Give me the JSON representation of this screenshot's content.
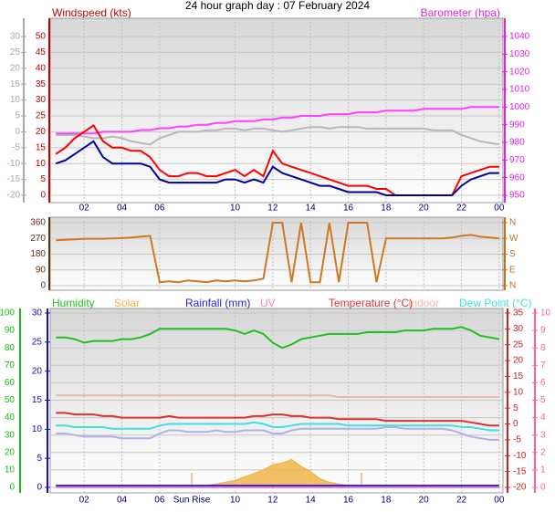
{
  "chart_data": [
    {
      "type": "line",
      "title": "24 hour graph day : 07 February 2024",
      "ylabel": "Windspeed (kts)",
      "y2label": "Barometer (hpa)",
      "x": [
        0.5,
        1,
        1.5,
        2,
        2.5,
        3,
        3.5,
        4,
        4.5,
        5,
        5.5,
        6,
        6.5,
        7,
        7.5,
        8,
        8.5,
        9,
        9.5,
        10,
        10.5,
        11,
        11.5,
        12,
        12.5,
        13,
        13.5,
        14,
        14.5,
        15,
        15.5,
        16,
        16.5,
        17,
        17.5,
        18,
        18.5,
        19,
        19.5,
        20,
        20.5,
        21,
        21.5,
        22,
        22.5,
        23,
        23.5,
        24
      ],
      "xlim": [
        0.2,
        24.2
      ],
      "xticks": [
        {
          "value": 2,
          "label": "02"
        },
        {
          "value": 4,
          "label": "04"
        },
        {
          "value": 6,
          "label": "06"
        },
        10,
        12,
        14,
        16,
        18,
        20,
        22,
        {
          "value": 24,
          "label": "00"
        }
      ],
      "ylim": [
        0,
        50
      ],
      "yticks": [
        0,
        5,
        10,
        15,
        20,
        25,
        30,
        35,
        40,
        45,
        50
      ],
      "y2lim": [
        950,
        1040
      ],
      "y2ticks": [
        950,
        960,
        970,
        980,
        990,
        1000,
        1010,
        1020,
        1030,
        1040
      ],
      "y3lim": [
        -20,
        30
      ],
      "y3ticks": [
        -20,
        -15,
        -10,
        -5,
        0,
        5,
        10,
        15,
        20,
        25,
        30
      ],
      "axis_colors": {
        "y": "#c00000",
        "y2": "#e020e0",
        "y3": "#a8a8a8"
      },
      "grid": true,
      "series": [
        {
          "color": "#b8b8b8",
          "axis": "y3",
          "values": [
            -1,
            -1,
            -1,
            -1.5,
            -2,
            -2,
            -1.5,
            -2,
            -3,
            -3.5,
            -4,
            -2,
            -1,
            0,
            0,
            0,
            0.5,
            0.5,
            1,
            1,
            0.5,
            1,
            1,
            0.5,
            0,
            0.5,
            1,
            1.5,
            1.5,
            1,
            1.5,
            1.5,
            1.5,
            1,
            1,
            1,
            1,
            1,
            1,
            1,
            0.5,
            0.5,
            0.5,
            -1,
            -2,
            -3,
            -3.5,
            -4
          ]
        },
        {
          "color": "#ff40ff",
          "axis": "y2",
          "values": [
            985,
            985,
            985,
            985,
            985,
            986,
            986,
            986,
            986,
            987,
            987,
            988,
            988,
            989,
            989,
            990,
            990,
            991,
            991,
            992,
            992,
            992,
            993,
            993,
            994,
            994,
            995,
            995,
            995,
            996,
            996,
            996,
            997,
            997,
            997,
            998,
            998,
            998,
            998,
            999,
            999,
            999,
            999,
            999,
            1000,
            1000,
            1000,
            1000
          ]
        },
        {
          "color": "#ff0000",
          "values": [
            13,
            15,
            18,
            20,
            22,
            17,
            15,
            15,
            14,
            14,
            12,
            8,
            6,
            6,
            7,
            7,
            6,
            6,
            7,
            8,
            6,
            8,
            6,
            14,
            10,
            9,
            8,
            7,
            6,
            5,
            4,
            3,
            3,
            3,
            2,
            2,
            0,
            0,
            0,
            0,
            0,
            0,
            0,
            6,
            7,
            8,
            9,
            9
          ]
        },
        {
          "color": "#0000a0",
          "values": [
            10,
            11,
            13,
            15,
            17,
            12,
            10,
            10,
            10,
            10,
            9,
            5,
            4,
            4,
            4,
            4,
            4,
            4,
            5,
            5,
            4,
            5,
            4,
            9,
            7,
            6,
            5,
            4,
            3,
            3,
            2,
            1,
            1,
            1,
            1,
            0,
            0,
            0,
            0,
            0,
            0,
            0,
            0,
            3,
            5,
            6,
            7,
            7
          ]
        }
      ]
    },
    {
      "type": "line",
      "x": [
        0.5,
        1,
        1.5,
        2,
        2.5,
        3,
        3.5,
        4,
        4.5,
        5,
        5.5,
        6,
        6.5,
        7,
        7.5,
        8,
        8.5,
        9,
        9.5,
        10,
        10.5,
        11,
        11.5,
        12,
        12.5,
        13,
        13.5,
        14,
        14.5,
        15,
        15.5,
        16,
        16.5,
        17,
        17.5,
        18,
        18.5,
        19,
        19.5,
        20,
        20.5,
        21,
        21.5,
        22,
        22.5,
        23,
        23.5,
        24
      ],
      "xlim": [
        0.2,
        24.2
      ],
      "ylim": [
        0,
        360
      ],
      "yticks": [
        0,
        90,
        180,
        270,
        360
      ],
      "y2lim": [
        0,
        360
      ],
      "y2ticks": [
        {
          "value": 0,
          "label": "N"
        },
        {
          "value": 90,
          "label": "E"
        },
        {
          "value": 180,
          "label": "S"
        },
        {
          "value": 270,
          "label": "W"
        },
        {
          "value": 360,
          "label": "N"
        }
      ],
      "axis_colors": {
        "y": "#603010",
        "y2": "#c07020"
      },
      "grid": true,
      "series": [
        {
          "color": "#d07820",
          "values": [
            260,
            262,
            265,
            268,
            268,
            268,
            270,
            272,
            275,
            280,
            285,
            20,
            25,
            20,
            30,
            25,
            20,
            30,
            25,
            30,
            25,
            30,
            40,
            360,
            360,
            20,
            360,
            20,
            20,
            360,
            20,
            360,
            360,
            360,
            20,
            270,
            270,
            270,
            270,
            270,
            270,
            270,
            275,
            285,
            290,
            280,
            275,
            270
          ]
        }
      ]
    },
    {
      "type": "line",
      "x": [
        0.5,
        1,
        1.5,
        2,
        2.5,
        3,
        3.5,
        4,
        4.5,
        5,
        5.5,
        6,
        6.5,
        7,
        7.5,
        8,
        8.5,
        9,
        9.5,
        10,
        10.5,
        11,
        11.5,
        12,
        12.5,
        13,
        13.5,
        14,
        14.5,
        15,
        15.5,
        16,
        16.5,
        17,
        17.5,
        18,
        18.5,
        19,
        19.5,
        20,
        20.5,
        21,
        21.5,
        22,
        22.5,
        23,
        23.5,
        24
      ],
      "xlim": [
        0.2,
        24.2
      ],
      "xticks": [
        {
          "value": 2,
          "label": "02"
        },
        {
          "value": 4,
          "label": "04"
        },
        {
          "value": 6,
          "label": "06"
        },
        10,
        12,
        14,
        16,
        18,
        20,
        22,
        {
          "value": 24,
          "label": "00"
        }
      ],
      "ylim": [
        0,
        100
      ],
      "yticks": [
        0,
        10,
        20,
        30,
        40,
        50,
        60,
        70,
        80,
        90,
        100
      ],
      "y2lim": [
        0,
        30
      ],
      "y2ticks": [
        0,
        5,
        10,
        15,
        20,
        25,
        30
      ],
      "y3lim": [
        -20,
        35
      ],
      "y3ticks": [
        -20,
        -15,
        -10,
        -5,
        0,
        5,
        10,
        15,
        20,
        25,
        30,
        35
      ],
      "y4lim": [
        0,
        10
      ],
      "y4ticks": [
        0,
        1,
        2,
        3,
        4,
        5,
        6,
        7,
        8,
        9,
        10
      ],
      "axis_colors": {
        "y": "#10c010",
        "y2": "#1010c0",
        "y3": "#d02020",
        "y4": "#ff60a0"
      },
      "grid": true,
      "sun": [
        {
          "label": "Sun Rise",
          "x": 7.7
        },
        {
          "x": 16.7
        }
      ],
      "series": [
        {
          "name": "Humidity",
          "color": "#20c020",
          "values": [
            86,
            86,
            85,
            83,
            84,
            84,
            84,
            85,
            85,
            86,
            88,
            91,
            91,
            91,
            91,
            91,
            91,
            91,
            91,
            90,
            88,
            90,
            88,
            83,
            80,
            82,
            85,
            86,
            87,
            88,
            88,
            88,
            88,
            89,
            89,
            89,
            89,
            90,
            90,
            90,
            91,
            91,
            91,
            92,
            90,
            87,
            86,
            85
          ]
        },
        {
          "name": "Solar",
          "color": "#f0b040",
          "fill": true,
          "values": [
            0,
            0,
            0,
            0,
            0,
            0,
            0,
            0,
            0,
            0,
            0,
            0,
            0,
            0,
            0,
            0.5,
            1,
            2,
            3,
            4,
            6,
            8,
            10,
            13,
            14,
            16,
            12,
            9,
            5,
            3,
            2,
            1,
            0.5,
            0,
            0,
            0,
            0,
            0,
            0,
            0,
            0,
            0,
            0,
            0,
            0,
            0,
            0,
            0
          ]
        },
        {
          "name": "Rainfall (mm)",
          "color": "#2020e0",
          "axis": "y2",
          "values": [
            0.3,
            0.3,
            0.3,
            0.3,
            0.3,
            0.3,
            0.3,
            0.3,
            0.3,
            0.3,
            0.3,
            0.3,
            0.3,
            0.3,
            0.3,
            0.3,
            0.3,
            0.3,
            0.3,
            0.3,
            0.3,
            0.3,
            0.3,
            0.3,
            0.3,
            0.3,
            0.3,
            0.3,
            0.3,
            0.3,
            0.3,
            0.3,
            0.3,
            0.3,
            0.3,
            0.3,
            0.3,
            0.3,
            0.3,
            0.3,
            0.3,
            0.3,
            0.3,
            0.3,
            0.3,
            0.3,
            0.3,
            0.3
          ]
        },
        {
          "name": "UV",
          "color": "#ff80c0",
          "axis": "y4",
          "values": [
            0,
            0,
            0,
            0,
            0,
            0,
            0,
            0,
            0,
            0,
            0,
            0,
            0,
            0,
            0,
            0,
            0,
            0,
            0,
            0,
            0,
            0,
            0,
            0,
            0,
            0,
            0,
            0,
            0,
            0,
            0,
            0,
            0,
            0,
            0,
            0,
            0,
            0,
            0,
            0,
            0,
            0,
            0,
            0,
            0,
            0,
            0,
            0
          ]
        },
        {
          "name": "Temperature (°C)",
          "color": "#e03030",
          "axis": "y3",
          "values": [
            3.5,
            3.5,
            3,
            3,
            3,
            2.5,
            2.5,
            2,
            2,
            2,
            2,
            2,
            2.5,
            2,
            2,
            2,
            2,
            2,
            2,
            2,
            2,
            2.5,
            2.5,
            3,
            3,
            2.5,
            2.5,
            2,
            2,
            2,
            1.5,
            1.5,
            1.5,
            1.5,
            1.5,
            1,
            1,
            1,
            1,
            1,
            1,
            1,
            1,
            1,
            0.5,
            0,
            -0.5,
            -0.5
          ]
        },
        {
          "name": "Indoor",
          "color": "#f0b8a8",
          "axis": "y3",
          "values": [
            9,
            9,
            9,
            9,
            9,
            9,
            9,
            9,
            9,
            9,
            9,
            9,
            9,
            9,
            9,
            9,
            9,
            9,
            9,
            9,
            9,
            9,
            9,
            9,
            9,
            9,
            9,
            9,
            9,
            9,
            8.5,
            8.5,
            8.5,
            8.5,
            8.5,
            8.5,
            8.5,
            8.5,
            8.5,
            8.5,
            8.5,
            8.5,
            8.5,
            8.5,
            8.5,
            8.5,
            8.5,
            8.5
          ]
        },
        {
          "name": "Dew Point (°C)",
          "color": "#40e0e0",
          "axis": "y3",
          "values": [
            -0.5,
            -0.5,
            -1,
            -1,
            -1,
            -1,
            -1.5,
            -1.5,
            -1.5,
            -1.5,
            -1.5,
            -0.5,
            0,
            0,
            0,
            0,
            0,
            0,
            0,
            0,
            0,
            0.5,
            0,
            -1,
            -1,
            -0.5,
            0,
            0,
            0,
            0,
            0,
            -0.5,
            -0.5,
            -0.5,
            -0.5,
            -0.5,
            -0.5,
            -0.5,
            -0.5,
            -0.5,
            -0.5,
            -0.5,
            -0.5,
            -1,
            -1,
            -1.5,
            -2,
            -2
          ]
        },
        {
          "color": "#b0b0f0",
          "axis": "y3",
          "values": [
            -3,
            -3,
            -3.5,
            -4,
            -4,
            -4,
            -4,
            -4.5,
            -4.5,
            -4.5,
            -4.5,
            -3,
            -2,
            -2,
            -2.5,
            -2.5,
            -2.5,
            -2,
            -2.5,
            -2.5,
            -2,
            -2,
            -2,
            -3,
            -3,
            -2,
            -1.5,
            -1.5,
            -1.5,
            -1.5,
            -1.5,
            -1.5,
            -1.5,
            -1.5,
            -1.5,
            -1,
            -1,
            -1.5,
            -1.5,
            -1.5,
            -1.5,
            -1.5,
            -2,
            -3,
            -4,
            -4.5,
            -5,
            -5
          ]
        }
      ]
    }
  ]
}
